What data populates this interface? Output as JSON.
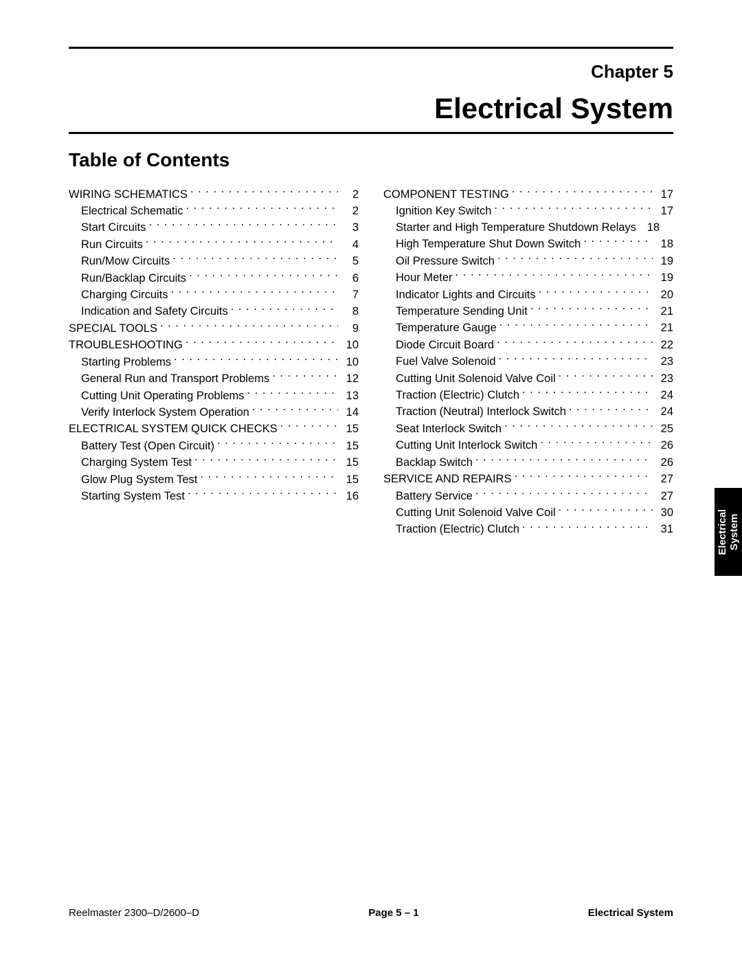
{
  "colors": {
    "text": "#000000",
    "background": "#ffffff",
    "tab_bg": "#000000",
    "tab_text": "#ffffff",
    "rule": "#000000"
  },
  "typography": {
    "body_font": "Arial",
    "chapter_line_size_pt": 20,
    "chapter_title_size_pt": 32,
    "toc_heading_size_pt": 21,
    "toc_entry_size_pt": 12.5,
    "footer_size_pt": 11
  },
  "header": {
    "chapter_line": "Chapter 5",
    "chapter_title": "Electrical System"
  },
  "toc_heading": "Table of Contents",
  "toc_left": [
    {
      "label": "WIRING SCHEMATICS",
      "page": "2",
      "level": 1
    },
    {
      "label": "Electrical Schematic",
      "page": "2",
      "level": 2
    },
    {
      "label": "Start Circuits",
      "page": "3",
      "level": 2
    },
    {
      "label": "Run Circuits",
      "page": "4",
      "level": 2
    },
    {
      "label": "Run/Mow Circuits",
      "page": "5",
      "level": 2
    },
    {
      "label": "Run/Backlap Circuits",
      "page": "6",
      "level": 2
    },
    {
      "label": "Charging Circuits",
      "page": "7",
      "level": 2
    },
    {
      "label": "Indication and Safety Circuits",
      "page": "8",
      "level": 2
    },
    {
      "label": "SPECIAL TOOLS",
      "page": "9",
      "level": 1
    },
    {
      "label": "TROUBLESHOOTING",
      "page": "10",
      "level": 1
    },
    {
      "label": "Starting Problems",
      "page": "10",
      "level": 2
    },
    {
      "label": "General Run and Transport Problems",
      "page": "12",
      "level": 2
    },
    {
      "label": "Cutting Unit Operating Problems",
      "page": "13",
      "level": 2
    },
    {
      "label": "Verify Interlock System Operation",
      "page": "14",
      "level": 2
    },
    {
      "label": "ELECTRICAL SYSTEM QUICK CHECKS",
      "page": "15",
      "level": 1
    },
    {
      "label": "Battery Test (Open Circuit)",
      "page": "15",
      "level": 2
    },
    {
      "label": "Charging System Test",
      "page": "15",
      "level": 2
    },
    {
      "label": "Glow Plug System Test",
      "page": "15",
      "level": 2
    },
    {
      "label": "Starting System Test",
      "page": "16",
      "level": 2
    }
  ],
  "toc_right": [
    {
      "label": "COMPONENT TESTING",
      "page": "17",
      "level": 1
    },
    {
      "label": "Ignition Key Switch",
      "page": "17",
      "level": 2
    },
    {
      "label": "Starter and High Temperature Shutdown Relays",
      "page": "18",
      "level": 2,
      "nodots": true
    },
    {
      "label": "High Temperature Shut Down Switch",
      "page": "18",
      "level": 2
    },
    {
      "label": "Oil Pressure Switch",
      "page": "19",
      "level": 2
    },
    {
      "label": "Hour Meter",
      "page": "19",
      "level": 2
    },
    {
      "label": "Indicator Lights and Circuits",
      "page": "20",
      "level": 2
    },
    {
      "label": "Temperature Sending Unit",
      "page": "21",
      "level": 2
    },
    {
      "label": "Temperature Gauge",
      "page": "21",
      "level": 2
    },
    {
      "label": "Diode Circuit Board",
      "page": "22",
      "level": 2
    },
    {
      "label": "Fuel Valve Solenoid",
      "page": "23",
      "level": 2
    },
    {
      "label": "Cutting Unit Solenoid Valve Coil",
      "page": "23",
      "level": 2
    },
    {
      "label": "Traction (Electric) Clutch",
      "page": "24",
      "level": 2
    },
    {
      "label": "Traction (Neutral) Interlock Switch",
      "page": "24",
      "level": 2
    },
    {
      "label": "Seat Interlock Switch",
      "page": "25",
      "level": 2
    },
    {
      "label": "Cutting Unit Interlock Switch",
      "page": "26",
      "level": 2
    },
    {
      "label": "Backlap Switch",
      "page": "26",
      "level": 2
    },
    {
      "label": "SERVICE AND REPAIRS",
      "page": "27",
      "level": 1
    },
    {
      "label": "Battery Service",
      "page": "27",
      "level": 2
    },
    {
      "label": "Cutting Unit Solenoid Valve Coil",
      "page": "30",
      "level": 2
    },
    {
      "label": "Traction (Electric) Clutch",
      "page": "31",
      "level": 2
    }
  ],
  "side_tab": {
    "line1": "Electrical",
    "line2": "System"
  },
  "footer": {
    "left": "Reelmaster 2300–D/2600–D",
    "center": "Page 5 – 1",
    "right": "Electrical System"
  }
}
